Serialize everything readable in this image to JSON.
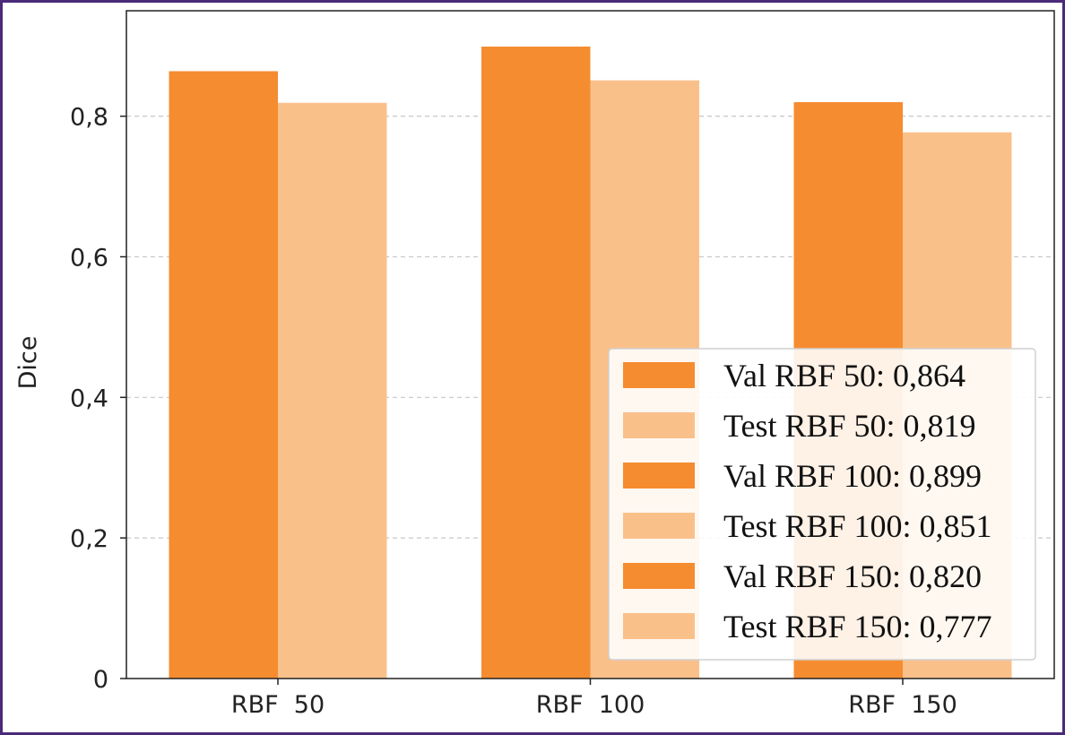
{
  "chart_data": {
    "type": "bar",
    "categories": [
      "RBF  50",
      "RBF  100",
      "RBF  150"
    ],
    "series": [
      {
        "name": "Val",
        "values": [
          0.864,
          0.899,
          0.82
        ],
        "color": "#f58c30"
      },
      {
        "name": "Test",
        "values": [
          0.819,
          0.851,
          0.777
        ],
        "color": "#fac08a"
      }
    ],
    "title": "",
    "xlabel": "",
    "ylabel": "Dice",
    "ylim": [
      0,
      0.95
    ],
    "yticks": [
      {
        "value": 0,
        "label": "0"
      },
      {
        "value": 0.2,
        "label": "0,2"
      },
      {
        "value": 0.4,
        "label": "0,4"
      },
      {
        "value": 0.6,
        "label": "0,6"
      },
      {
        "value": 0.8,
        "label": "0,8"
      }
    ],
    "grid": "horizontal-dashed",
    "legend_position": "bottom-right",
    "legend": [
      {
        "label": "Val RBF 50: 0,864",
        "color": "#f58c30"
      },
      {
        "label": "Test RBF 50: 0,819",
        "color": "#fac08a"
      },
      {
        "label": "Val RBF 100: 0,899",
        "color": "#f58c30"
      },
      {
        "label": "Test RBF 100: 0,851",
        "color": "#fac08a"
      },
      {
        "label": "Val RBF 150: 0,820",
        "color": "#f58c30"
      },
      {
        "label": "Test RBF 150: 0,777",
        "color": "#fac08a"
      }
    ],
    "frame_color": "#4b2a7a"
  }
}
